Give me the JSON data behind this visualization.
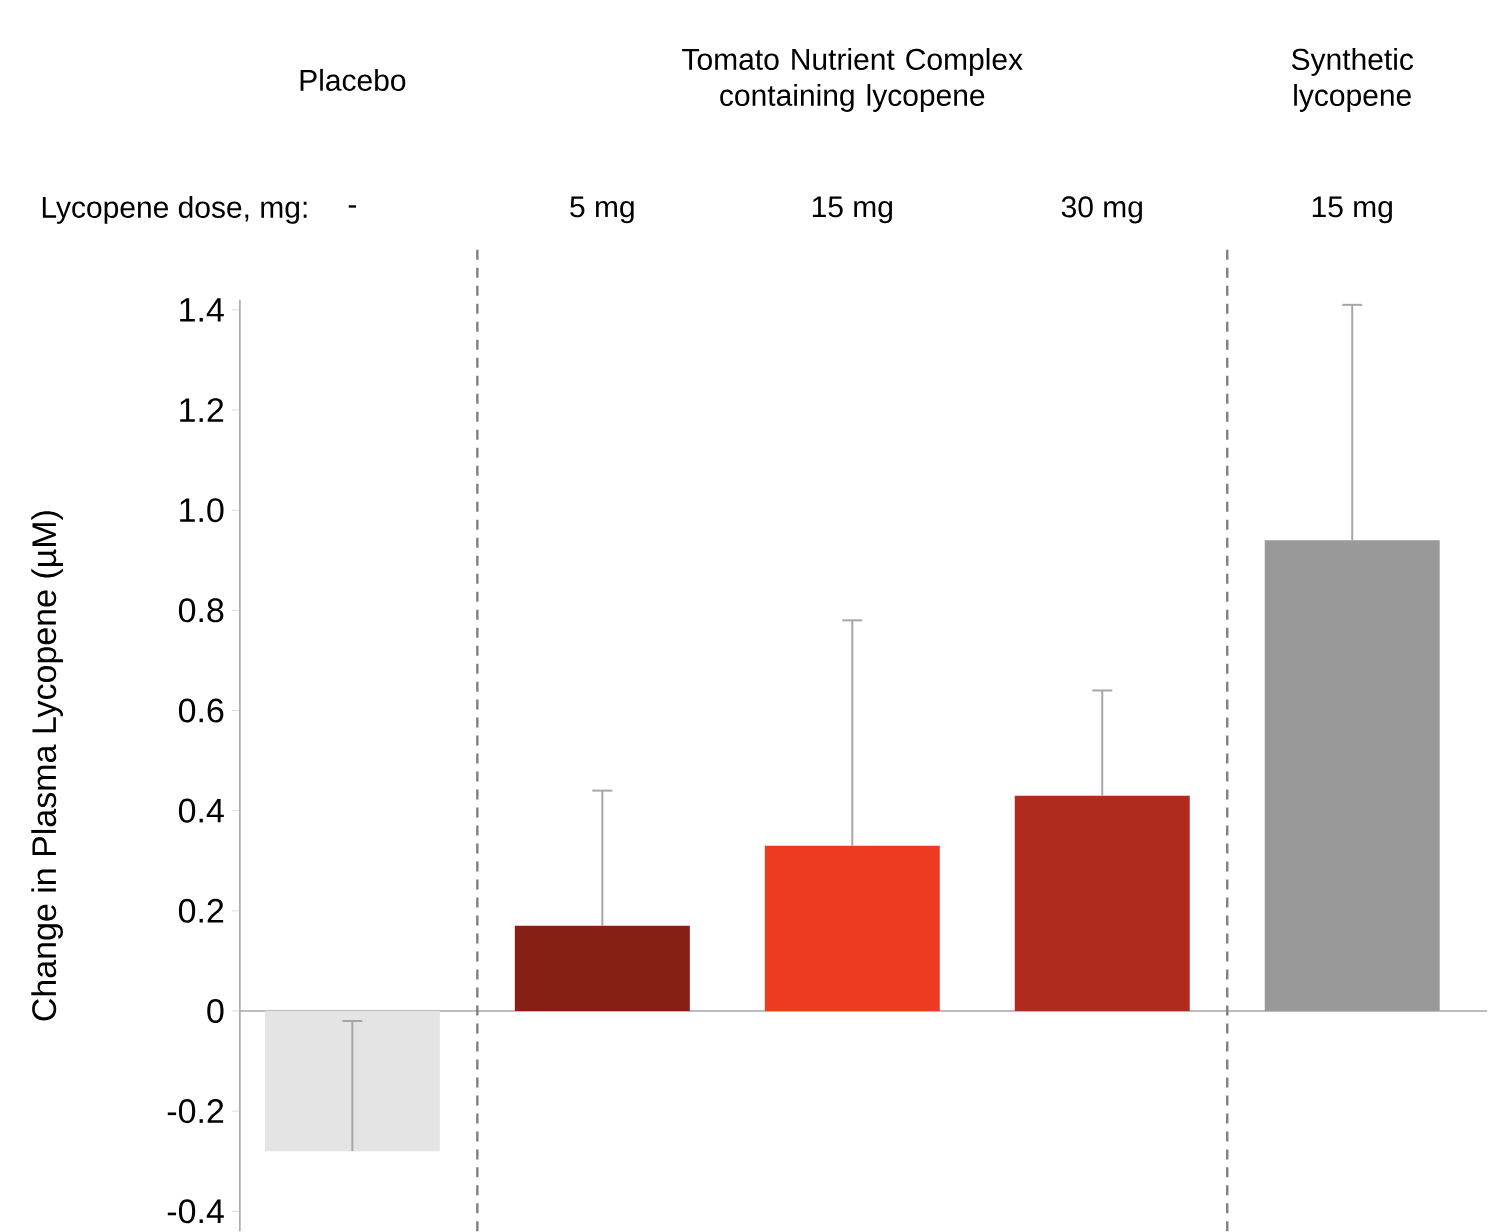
{
  "chart_data": {
    "type": "bar",
    "xlabel": "Lycopene dose, mg:",
    "ylabel": "Change in Plasma Lycopene (µM)",
    "categories": [
      "-",
      "5 mg",
      "15 mg",
      "30 mg",
      "15 mg"
    ],
    "values": [
      -0.28,
      0.17,
      0.33,
      0.43,
      0.94
    ],
    "colors": [
      "#e4e4e4",
      "#861f14",
      "#ec3a23",
      "#b02a1d",
      "#999999"
    ],
    "errors": [
      [
        -0.28,
        -0.02
      ],
      [
        0.17,
        0.44
      ],
      [
        0.33,
        0.78
      ],
      [
        0.43,
        0.64
      ],
      [
        0.94,
        1.41
      ]
    ],
    "annotations": [
      "Placebo",
      "Tomato Nutrient Complex containing lycopene",
      "Synthetic lycopene"
    ],
    "ylim": [
      -0.44,
      1.42
    ],
    "yticks": [
      -0.4,
      -0.2,
      {
        "value": 0,
        "label": "0"
      },
      0.2,
      0.4,
      0.6,
      0.8,
      {
        "value": 1,
        "label": "1.0"
      },
      1.2,
      1.4
    ]
  }
}
